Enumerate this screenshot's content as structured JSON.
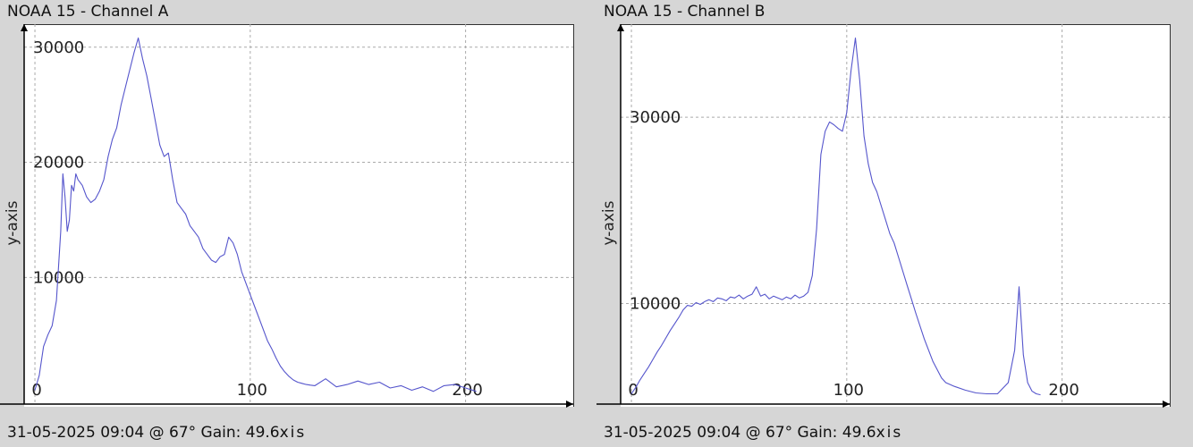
{
  "charts": [
    {
      "title": "NOAA 15 - Channel A",
      "footer": "31-05-2025 09:04 @ 67° Gain: 49.6",
      "x_axis_suffix": "xis",
      "ylabel": "y-axis"
    },
    {
      "title": "NOAA 15 - Channel B",
      "footer": "31-05-2025 09:04 @ 67° Gain: 49.6",
      "x_axis_suffix": "xis",
      "ylabel": "y-axis"
    }
  ],
  "line_color": "#5555cc",
  "grid_color": "#aaaaaa",
  "chart_data": [
    {
      "type": "line",
      "title": "NOAA 15 - Channel A",
      "xlabel": "",
      "ylabel": "y-axis",
      "xlim": [
        -5,
        250
      ],
      "ylim": [
        -1000,
        32000
      ],
      "x_ticks": [
        0,
        100,
        200
      ],
      "y_ticks": [
        10000,
        20000,
        30000
      ],
      "grid": true,
      "x": [
        0,
        2,
        4,
        6,
        8,
        10,
        11,
        12,
        13,
        14,
        15,
        16,
        17,
        18,
        19,
        20,
        22,
        24,
        26,
        28,
        30,
        32,
        34,
        36,
        38,
        40,
        42,
        44,
        46,
        48,
        50,
        52,
        54,
        56,
        58,
        60,
        62,
        64,
        66,
        68,
        70,
        72,
        74,
        76,
        78,
        80,
        82,
        84,
        86,
        88,
        90,
        92,
        94,
        96,
        98,
        100,
        102,
        104,
        106,
        108,
        110,
        112,
        114,
        116,
        118,
        120,
        122,
        124,
        126,
        128,
        130,
        135,
        140,
        145,
        150,
        155,
        160,
        165,
        170,
        175,
        180,
        185,
        190,
        195,
        200,
        205
      ],
      "series": [
        {
          "values": [
            200,
            1500,
            4000,
            5000,
            5800,
            8000,
            11000,
            14000,
            19000,
            17000,
            14000,
            15000,
            18000,
            17500,
            19000,
            18500,
            18000,
            17000,
            16500,
            16800,
            17500,
            18500,
            20500,
            22000,
            23000,
            25000,
            26500,
            28000,
            29500,
            30800,
            29000,
            27500,
            25500,
            23500,
            21500,
            20500,
            20800,
            18500,
            16500,
            16000,
            15500,
            14500,
            14000,
            13500,
            12500,
            12000,
            11500,
            11300,
            11800,
            12000,
            13500,
            13000,
            12000,
            10500,
            9500,
            8500,
            7500,
            6500,
            5500,
            4500,
            3800,
            3000,
            2300,
            1800,
            1400,
            1100,
            900,
            800,
            700,
            650,
            600,
            1200,
            500,
            700,
            1000,
            700,
            900,
            400,
            600,
            200,
            500,
            100,
            600,
            700,
            400,
            100
          ]
        }
      ]
    },
    {
      "type": "line",
      "title": "NOAA 15 - Channel B",
      "xlabel": "",
      "ylabel": "y-axis",
      "xlim": [
        -5,
        250
      ],
      "ylim": [
        -800,
        40000
      ],
      "x_ticks": [
        0,
        100,
        200
      ],
      "y_ticks": [
        10000,
        30000
      ],
      "grid": true,
      "x": [
        0,
        2,
        4,
        6,
        8,
        10,
        12,
        14,
        16,
        18,
        20,
        22,
        24,
        26,
        28,
        30,
        32,
        34,
        36,
        38,
        40,
        42,
        44,
        46,
        48,
        50,
        52,
        54,
        56,
        58,
        60,
        62,
        64,
        66,
        68,
        70,
        72,
        74,
        76,
        78,
        80,
        82,
        84,
        86,
        88,
        90,
        92,
        94,
        96,
        98,
        100,
        102,
        104,
        106,
        108,
        110,
        112,
        114,
        116,
        118,
        120,
        122,
        124,
        126,
        128,
        130,
        132,
        134,
        136,
        138,
        140,
        142,
        144,
        146,
        148,
        150,
        155,
        160,
        165,
        170,
        175,
        178,
        180,
        182,
        184,
        186,
        188,
        190
      ],
      "series": [
        {
          "values": [
            300,
            1000,
            1800,
            2500,
            3200,
            4000,
            4800,
            5500,
            6300,
            7100,
            7800,
            8500,
            9300,
            9800,
            9700,
            10100,
            9900,
            10200,
            10400,
            10200,
            10600,
            10500,
            10300,
            10700,
            10600,
            10900,
            10500,
            10800,
            11000,
            11800,
            10800,
            11000,
            10500,
            10800,
            10600,
            10400,
            10700,
            10500,
            10900,
            10600,
            10800,
            11200,
            13000,
            18000,
            26000,
            28500,
            29500,
            29200,
            28800,
            28500,
            30500,
            35000,
            38500,
            34000,
            28000,
            25000,
            23000,
            22000,
            20500,
            19000,
            17500,
            16500,
            15000,
            13500,
            12000,
            10500,
            9000,
            7600,
            6200,
            5000,
            3800,
            2900,
            2000,
            1500,
            1300,
            1100,
            700,
            400,
            300,
            300,
            1500,
            5000,
            11800,
            4500,
            1500,
            600,
            300,
            200
          ]
        }
      ]
    }
  ]
}
